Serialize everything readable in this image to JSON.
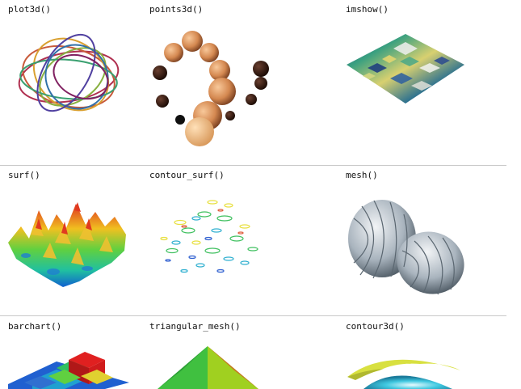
{
  "gallery": {
    "items": [
      {
        "label": "plot3d()"
      },
      {
        "label": "points3d()"
      },
      {
        "label": "imshow()"
      },
      {
        "label": "surf()"
      },
      {
        "label": "contour_surf()"
      },
      {
        "label": "mesh()"
      },
      {
        "label": "barchart()"
      },
      {
        "label": "triangular_mesh()"
      },
      {
        "label": "contour3d()"
      }
    ]
  }
}
